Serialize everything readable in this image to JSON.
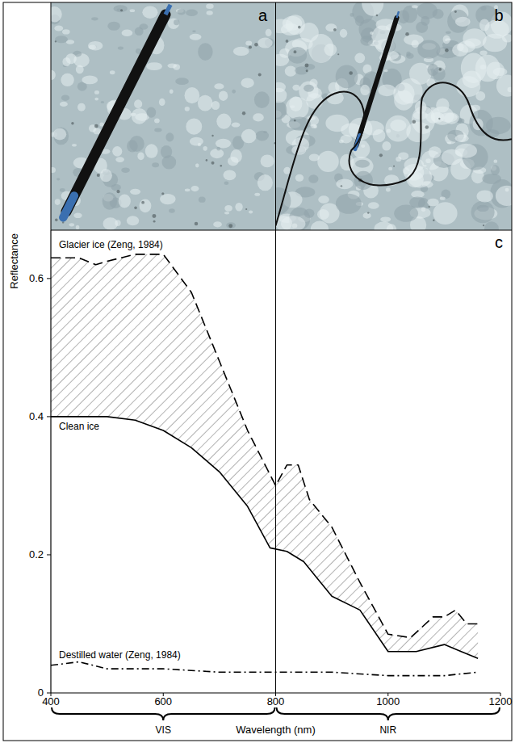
{
  "panels": [
    {
      "label": "a"
    },
    {
      "label": "b"
    }
  ],
  "chart_data": {
    "type": "line",
    "panel_label": "c",
    "x_label": "Wavelength (nm)",
    "y_label": "Reflectance",
    "xlim": [
      400,
      1200
    ],
    "xticks": [
      400,
      600,
      800,
      1000,
      1200
    ],
    "ylim": [
      0,
      0.67
    ],
    "yticks": [
      0,
      0.2,
      0.4,
      0.6
    ],
    "series": [
      {
        "name": "Glacier ice (Zeng, 1984)",
        "color": "#000000",
        "line_style": "dashed",
        "x": [
          400,
          450,
          480,
          500,
          550,
          600,
          650,
          700,
          750,
          800,
          820,
          840,
          860,
          900,
          950,
          1000,
          1040,
          1080,
          1100,
          1120,
          1140,
          1160
        ],
        "values": [
          0.63,
          0.63,
          0.62,
          0.625,
          0.635,
          0.635,
          0.58,
          0.48,
          0.38,
          0.3,
          0.33,
          0.33,
          0.28,
          0.24,
          0.16,
          0.085,
          0.08,
          0.11,
          0.11,
          0.12,
          0.1,
          0.1
        ]
      },
      {
        "name": "Clean ice",
        "color": "#000000",
        "line_style": "solid",
        "x": [
          400,
          450,
          500,
          550,
          600,
          650,
          700,
          750,
          790,
          820,
          850,
          880,
          900,
          950,
          1000,
          1050,
          1100,
          1130,
          1160
        ],
        "values": [
          0.4,
          0.4,
          0.4,
          0.395,
          0.38,
          0.355,
          0.32,
          0.27,
          0.21,
          0.205,
          0.19,
          0.16,
          0.14,
          0.12,
          0.06,
          0.06,
          0.07,
          0.06,
          0.05
        ]
      },
      {
        "name": "Destilled water (Zeng, 1984)",
        "color": "#000000",
        "line_style": "dashdot",
        "x": [
          400,
          450,
          500,
          600,
          700,
          800,
          900,
          1000,
          1100,
          1160
        ],
        "values": [
          0.04,
          0.045,
          0.035,
          0.035,
          0.03,
          0.03,
          0.03,
          0.025,
          0.025,
          0.03
        ]
      }
    ],
    "regions": [
      {
        "label": "VIS",
        "range": [
          400,
          800
        ]
      },
      {
        "label": "NIR",
        "range": [
          800,
          1200
        ]
      }
    ]
  }
}
